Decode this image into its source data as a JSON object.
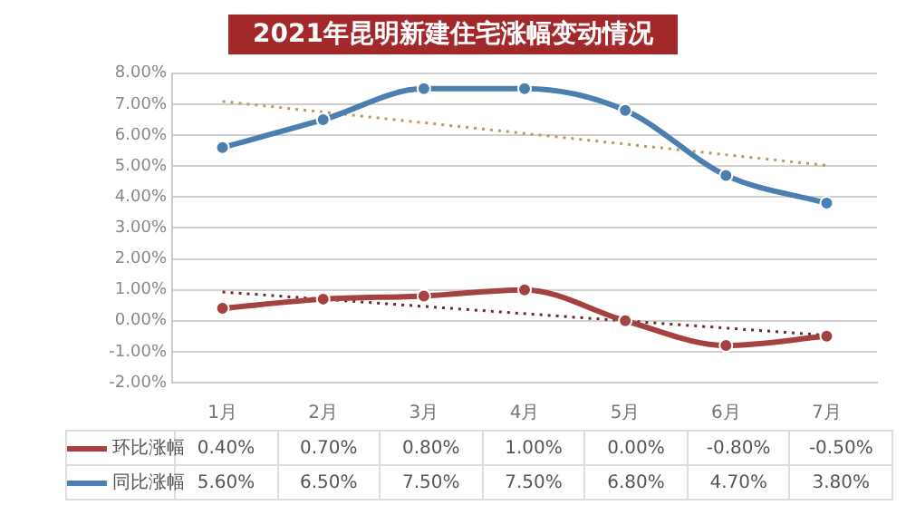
{
  "chart_data": {
    "type": "line",
    "title": "2021年昆明新建住宅涨幅变动情况",
    "categories": [
      "1月",
      "2月",
      "3月",
      "4月",
      "5月",
      "6月",
      "7月"
    ],
    "series": [
      {
        "name": "环比涨幅",
        "color": "#a5413f",
        "values": [
          0.4,
          0.7,
          0.8,
          1.0,
          0.0,
          -0.8,
          -0.5
        ],
        "value_labels": [
          "0.40%",
          "0.70%",
          "0.80%",
          "1.00%",
          "0.00%",
          "-0.80%",
          "-0.50%"
        ]
      },
      {
        "name": "同比涨幅",
        "color": "#4a7fb0",
        "values": [
          5.6,
          6.5,
          7.5,
          7.5,
          6.8,
          4.7,
          3.8
        ],
        "value_labels": [
          "5.60%",
          "6.50%",
          "7.50%",
          "7.50%",
          "6.80%",
          "4.70%",
          "3.80%"
        ]
      },
      {
        "type": "line",
        "color": "#6e2a2c",
        "x": [
          "1月",
          "7月"
        ],
        "values": [
          0.93,
          -0.47
        ],
        "line_style": "dotted",
        "marker": "none"
      },
      {
        "type": "line",
        "color": "#c09a5a",
        "x": [
          "1月",
          "7月"
        ],
        "values": [
          7.09,
          5.02
        ],
        "line_style": "dotted",
        "marker": "none"
      }
    ],
    "ylim": [
      -2,
      8
    ],
    "yticks": [
      {
        "value": -2,
        "label": "-2.00%"
      },
      {
        "value": -1,
        "label": "-1.00%"
      },
      {
        "value": 0,
        "label": "0.00%"
      },
      {
        "value": 1,
        "label": "1.00%"
      },
      {
        "value": 2,
        "label": "2.00%"
      },
      {
        "value": 3,
        "label": "3.00%"
      },
      {
        "value": 4,
        "label": "4.00%"
      },
      {
        "value": 5,
        "label": "5.00%"
      },
      {
        "value": 6,
        "label": "6.00%"
      },
      {
        "value": 7,
        "label": "7.00%"
      },
      {
        "value": 8,
        "label": "8.00%"
      }
    ],
    "grid": "y",
    "legend": "bottom",
    "marker": "circle",
    "line_style": "solid"
  }
}
